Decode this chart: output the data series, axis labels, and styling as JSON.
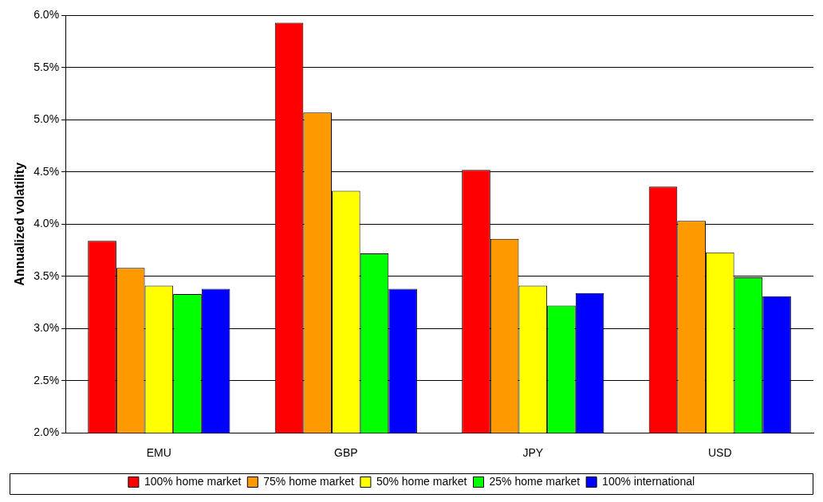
{
  "chart_data": {
    "type": "bar",
    "ylabel": "Annualized volatility",
    "categories": [
      "EMU",
      "GBP",
      "JPY",
      "USD"
    ],
    "series": [
      {
        "name": "100% home market",
        "color": "#ff0000",
        "values": [
          3.84,
          5.93,
          4.52,
          4.36
        ]
      },
      {
        "name": "75% home market",
        "color": "#ff9900",
        "values": [
          3.58,
          5.07,
          3.86,
          4.03
        ]
      },
      {
        "name": "50% home market",
        "color": "#ffff00",
        "values": [
          3.41,
          4.32,
          3.41,
          3.73
        ]
      },
      {
        "name": "25% home market",
        "color": "#00ff00",
        "values": [
          3.33,
          3.72,
          3.22,
          3.49
        ]
      },
      {
        "name": "100% international",
        "color": "#0000ff",
        "values": [
          3.38,
          3.38,
          3.34,
          3.31
        ]
      }
    ],
    "ylim": [
      2,
      6
    ],
    "yticks": [
      {
        "value": 2,
        "label": "2.0%"
      },
      {
        "value": 2.5,
        "label": "2.5%"
      },
      {
        "value": 3,
        "label": "3.0%"
      },
      {
        "value": 3.5,
        "label": "3.5%"
      },
      {
        "value": 4,
        "label": "4.0%"
      },
      {
        "value": 4.5,
        "label": "4.5%"
      },
      {
        "value": 5,
        "label": "5.0%"
      },
      {
        "value": 5.5,
        "label": "5.5%"
      },
      {
        "value": 6,
        "label": "6.0%"
      }
    ],
    "grid": "y",
    "legend": "bottom"
  }
}
